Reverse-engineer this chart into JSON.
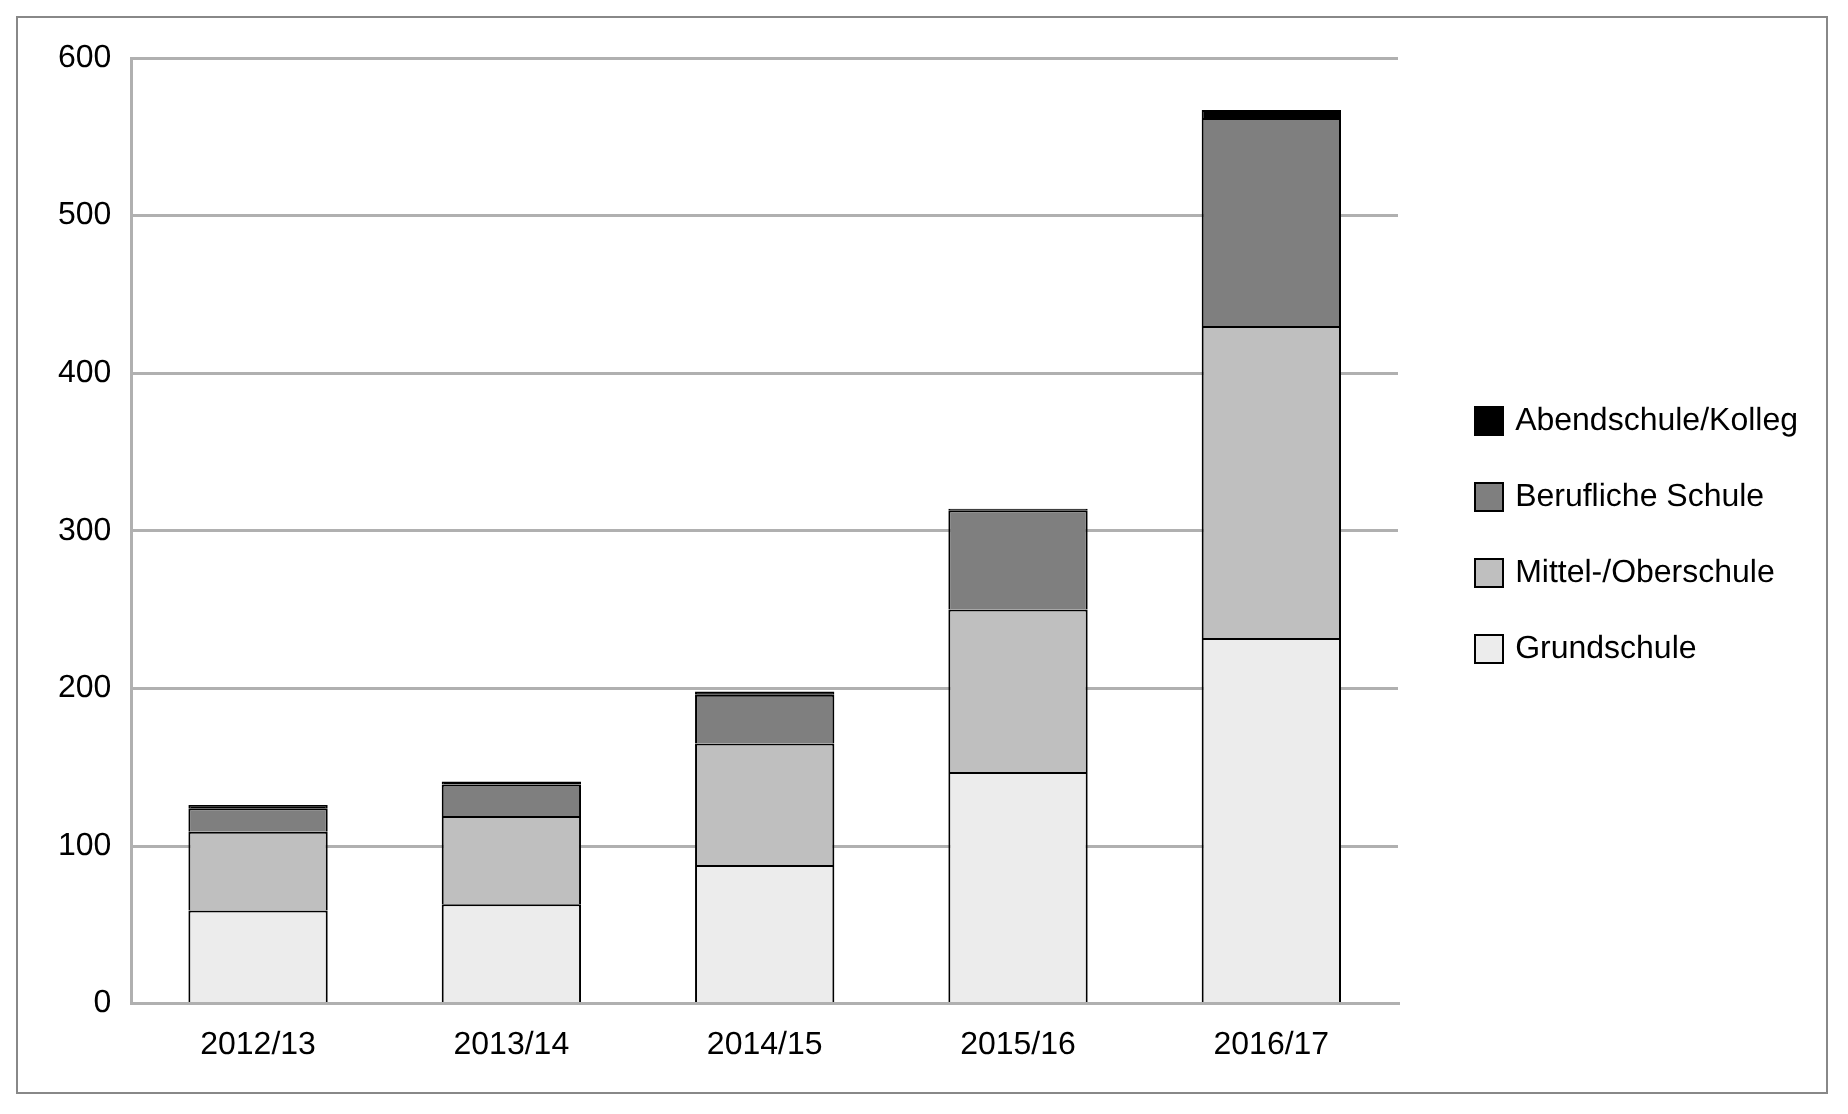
{
  "chart_data": {
    "type": "bar",
    "stacked": true,
    "categories": [
      "2012/13",
      "2013/14",
      "2014/15",
      "2015/16",
      "2016/17"
    ],
    "series": [
      {
        "name": "Grundschule",
        "color": "#ececec",
        "values": [
          59,
          63,
          88,
          147,
          232
        ]
      },
      {
        "name": "Mittel-/Oberschule",
        "color": "#bfbfbf",
        "values": [
          50,
          56,
          77,
          103,
          198
        ]
      },
      {
        "name": "Berufliche Schule",
        "color": "#7f7f7f",
        "values": [
          15,
          20,
          31,
          63,
          132
        ]
      },
      {
        "name": "Abendschule/Kolleg",
        "color": "#000000",
        "values": [
          2,
          2,
          2,
          1,
          5
        ]
      }
    ],
    "ylim": [
      0,
      600
    ],
    "yticks": [
      0,
      100,
      200,
      300,
      400,
      500,
      600
    ],
    "grid": "y",
    "legend": "right"
  }
}
